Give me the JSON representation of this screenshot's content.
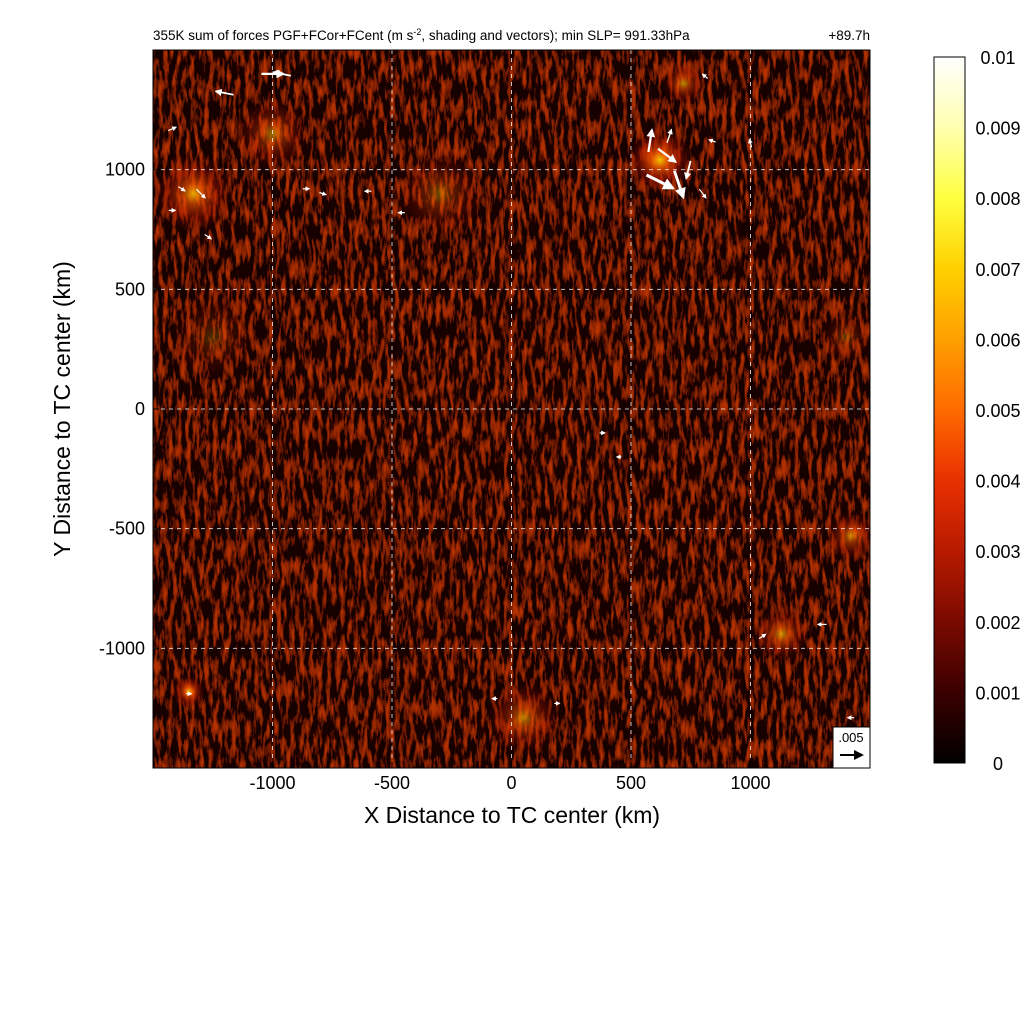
{
  "chart_data": {
    "type": "heatmap",
    "title": "355K sum of forces PGF+FCor+FCent (m s",
    "title_superscript": "-2",
    "title_rest": ", shading and vectors); min SLP= 991.33hPa",
    "time_label": "+89.7h",
    "xlabel": "X Distance to TC center (km)",
    "ylabel": "Y Distance to TC center (km)",
    "xlim": [
      -1500,
      1500
    ],
    "ylim": [
      -1500,
      1500
    ],
    "x_ticks": [
      -1000,
      -500,
      0,
      500,
      1000
    ],
    "y_ticks": [
      1000,
      500,
      0,
      -500,
      -1000
    ],
    "x_tick_labels": [
      "-1000",
      "-500",
      "0",
      "500",
      "1000"
    ],
    "y_tick_labels": [
      "1000",
      "500",
      "0",
      "-500",
      "-1000"
    ],
    "grid": true,
    "colorbar": {
      "min": 0,
      "max": 0.01,
      "tick_values": [
        0.01,
        0.009,
        0.008,
        0.007,
        0.006,
        0.005,
        0.004,
        0.003,
        0.002,
        0.001,
        0
      ],
      "tick_labels": [
        "0.01",
        "0.009",
        "0.008",
        "0.007",
        "0.006",
        "0.005",
        "0.004",
        "0.003",
        "0.002",
        "0.001",
        "0"
      ],
      "colors": [
        "#000000",
        "#3a0000",
        "#7a0a00",
        "#b81a00",
        "#e83000",
        "#ff6a00",
        "#ffa000",
        "#ffd000",
        "#ffff40",
        "#ffffb0",
        "#ffffff"
      ]
    },
    "reference_vector": {
      "label": ".005",
      "value": 0.005
    },
    "hotspots": [
      {
        "x": 620,
        "y": 1040,
        "intensity": 0.0085,
        "spread": 140
      },
      {
        "x": 720,
        "y": 1360,
        "intensity": 0.0045,
        "spread": 90
      },
      {
        "x": -1330,
        "y": 900,
        "intensity": 0.005,
        "spread": 170
      },
      {
        "x": -1000,
        "y": 1150,
        "intensity": 0.0035,
        "spread": 160
      },
      {
        "x": -1350,
        "y": -1180,
        "intensity": 0.006,
        "spread": 70
      },
      {
        "x": 1130,
        "y": -940,
        "intensity": 0.0045,
        "spread": 120
      },
      {
        "x": 1420,
        "y": -530,
        "intensity": 0.004,
        "spread": 110
      },
      {
        "x": 50,
        "y": -1290,
        "intensity": 0.0038,
        "spread": 160
      },
      {
        "x": -300,
        "y": 900,
        "intensity": 0.0025,
        "spread": 200
      },
      {
        "x": 1400,
        "y": 300,
        "intensity": 0.0018,
        "spread": 120
      },
      {
        "x": -1250,
        "y": 300,
        "intensity": 0.0015,
        "spread": 200
      }
    ],
    "vectors": [
      {
        "x": 580,
        "y": 1120,
        "u": 0.0008,
        "v": 0.005
      },
      {
        "x": 650,
        "y": 1060,
        "u": 0.004,
        "v": -0.003
      },
      {
        "x": 620,
        "y": 950,
        "u": 0.006,
        "v": -0.003
      },
      {
        "x": 700,
        "y": 940,
        "u": 0.002,
        "v": -0.006
      },
      {
        "x": 740,
        "y": 1000,
        "u": -0.001,
        "v": -0.004
      },
      {
        "x": 660,
        "y": 1140,
        "u": 0.001,
        "v": 0.003
      },
      {
        "x": 800,
        "y": 900,
        "u": 0.0015,
        "v": -0.002
      },
      {
        "x": -1000,
        "y": 1400,
        "u": 0.005,
        "v": 0
      },
      {
        "x": -960,
        "y": 1400,
        "u": -0.004,
        "v": 0.0008
      },
      {
        "x": -1200,
        "y": 1320,
        "u": -0.004,
        "v": 0.0008
      },
      {
        "x": -1300,
        "y": 900,
        "u": 0.002,
        "v": -0.002
      },
      {
        "x": -1380,
        "y": 920,
        "u": 0.0015,
        "v": -0.001
      },
      {
        "x": -1270,
        "y": 720,
        "u": 0.0015,
        "v": -0.001
      },
      {
        "x": -1420,
        "y": 830,
        "u": 0.0015,
        "v": 0
      },
      {
        "x": -860,
        "y": 920,
        "u": 0.0015,
        "v": 0
      },
      {
        "x": -790,
        "y": 900,
        "u": 0.0015,
        "v": -0.0005
      },
      {
        "x": -600,
        "y": 910,
        "u": -0.0015,
        "v": 0
      },
      {
        "x": -460,
        "y": 820,
        "u": -0.0015,
        "v": 0
      },
      {
        "x": -1420,
        "y": 1170,
        "u": 0.0018,
        "v": 0.0008
      },
      {
        "x": 1000,
        "y": 1110,
        "u": -0.0005,
        "v": 0.0018
      },
      {
        "x": 840,
        "y": 1120,
        "u": -0.0015,
        "v": 0.0005
      },
      {
        "x": 810,
        "y": 1390,
        "u": -0.0012,
        "v": 0.001
      },
      {
        "x": 1050,
        "y": -950,
        "u": 0.0015,
        "v": 0.001
      },
      {
        "x": 1300,
        "y": -900,
        "u": -0.002,
        "v": 0
      },
      {
        "x": 1420,
        "y": -1290,
        "u": -0.0015,
        "v": 0
      },
      {
        "x": -1350,
        "y": -1190,
        "u": 0.0012,
        "v": 0
      },
      {
        "x": 380,
        "y": -100,
        "u": 0.0012,
        "v": 0
      },
      {
        "x": 450,
        "y": -200,
        "u": -0.001,
        "v": 0
      },
      {
        "x": -70,
        "y": -1210,
        "u": -0.0012,
        "v": 0
      },
      {
        "x": 190,
        "y": -1230,
        "u": 0.0012,
        "v": 0
      }
    ]
  }
}
